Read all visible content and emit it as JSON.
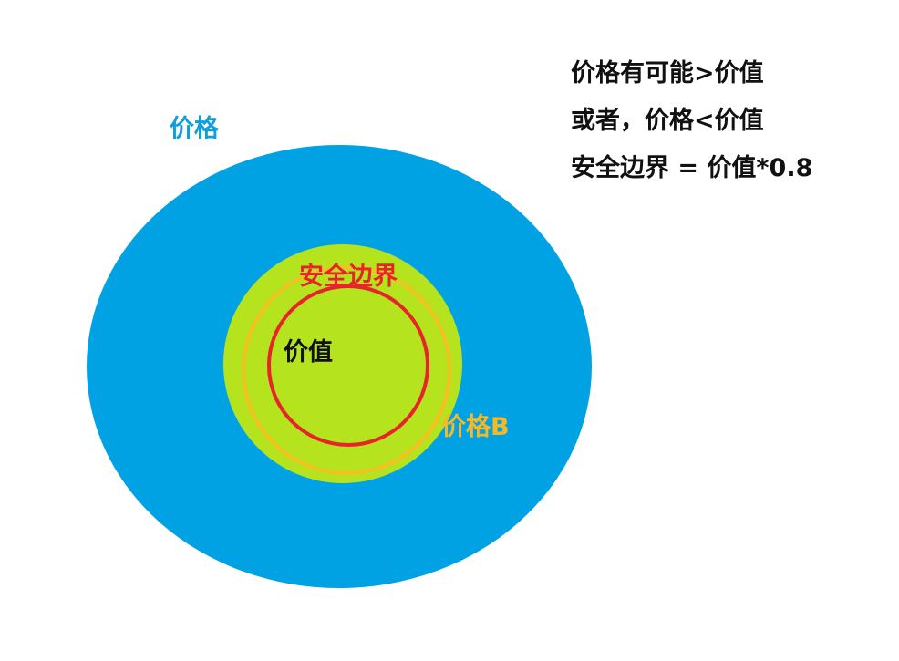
{
  "labels": {
    "price": "价格",
    "safety_margin": "安全边界",
    "value": "价值",
    "price_b": "价格B"
  },
  "notes": [
    "价格有可能>价值",
    "或者，价格<价值",
    "安全边界 = 价值*0.8"
  ],
  "colors": {
    "price_ellipse": "#00A2E3",
    "green_circle": "#B5E31E",
    "price_b_ring": "#F5C022",
    "value_ring": "#E8242B",
    "price_label": "#0FA0DC",
    "margin_label": "#E8242B",
    "value_label": "#111111",
    "price_b_label": "#F3B92A"
  }
}
